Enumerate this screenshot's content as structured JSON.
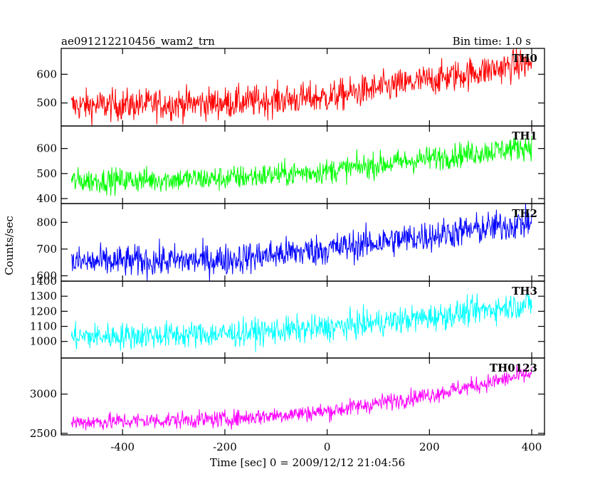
{
  "header": {
    "title": "ae091212210456_wam2_trn",
    "bin_time": "Bin time: 1.0 s"
  },
  "axes": {
    "xlabel": "Time [sec] 0 = 2009/12/12 21:04:56",
    "ylabel": "Counts/sec"
  },
  "chart_data": {
    "type": "line",
    "title": "ae091212210456_wam2_trn",
    "xlabel": "Time [sec] 0 = 2009/12/12 21:04:56",
    "ylabel": "Counts/sec",
    "xlim": [
      -520,
      425
    ],
    "xticks": [
      -400,
      -200,
      0,
      200,
      400
    ],
    "x_range": [
      -500,
      400
    ],
    "bin_time_s": 1.0,
    "grid": false,
    "panels": [
      {
        "name": "TH0",
        "color": "#ff0000",
        "ylim": [
          420,
          690
        ],
        "yticks": [
          500,
          600
        ],
        "trend": [
          [
            -500,
            490
          ],
          [
            -200,
            500
          ],
          [
            0,
            520
          ],
          [
            200,
            580
          ],
          [
            400,
            640
          ]
        ],
        "noise": 28
      },
      {
        "name": "TH1",
        "color": "#00ff00",
        "ylim": [
          380,
          690
        ],
        "yticks": [
          400,
          500,
          600
        ],
        "trend": [
          [
            -500,
            470
          ],
          [
            -200,
            480
          ],
          [
            0,
            510
          ],
          [
            200,
            560
          ],
          [
            400,
            610
          ]
        ],
        "noise": 25
      },
      {
        "name": "TH2",
        "color": "#0000ff",
        "ylim": [
          580,
          870
        ],
        "yticks": [
          600,
          700,
          800
        ],
        "trend": [
          [
            -500,
            650
          ],
          [
            -200,
            660
          ],
          [
            0,
            700
          ],
          [
            200,
            750
          ],
          [
            400,
            800
          ]
        ],
        "noise": 30
      },
      {
        "name": "TH3",
        "color": "#00ffff",
        "ylim": [
          890,
          1400
        ],
        "yticks": [
          1000,
          1100,
          1200,
          1300,
          1400
        ],
        "trend": [
          [
            -500,
            1030
          ],
          [
            -200,
            1050
          ],
          [
            0,
            1090
          ],
          [
            200,
            1160
          ],
          [
            400,
            1250
          ]
        ],
        "noise": 45
      },
      {
        "name": "TH0123",
        "color": "#ff00ff",
        "ylim": [
          2480,
          3460
        ],
        "yticks": [
          2500,
          3000
        ],
        "trend": [
          [
            -500,
            2640
          ],
          [
            -200,
            2680
          ],
          [
            0,
            2780
          ],
          [
            200,
            2990
          ],
          [
            400,
            3260
          ]
        ],
        "noise": 55
      }
    ]
  }
}
